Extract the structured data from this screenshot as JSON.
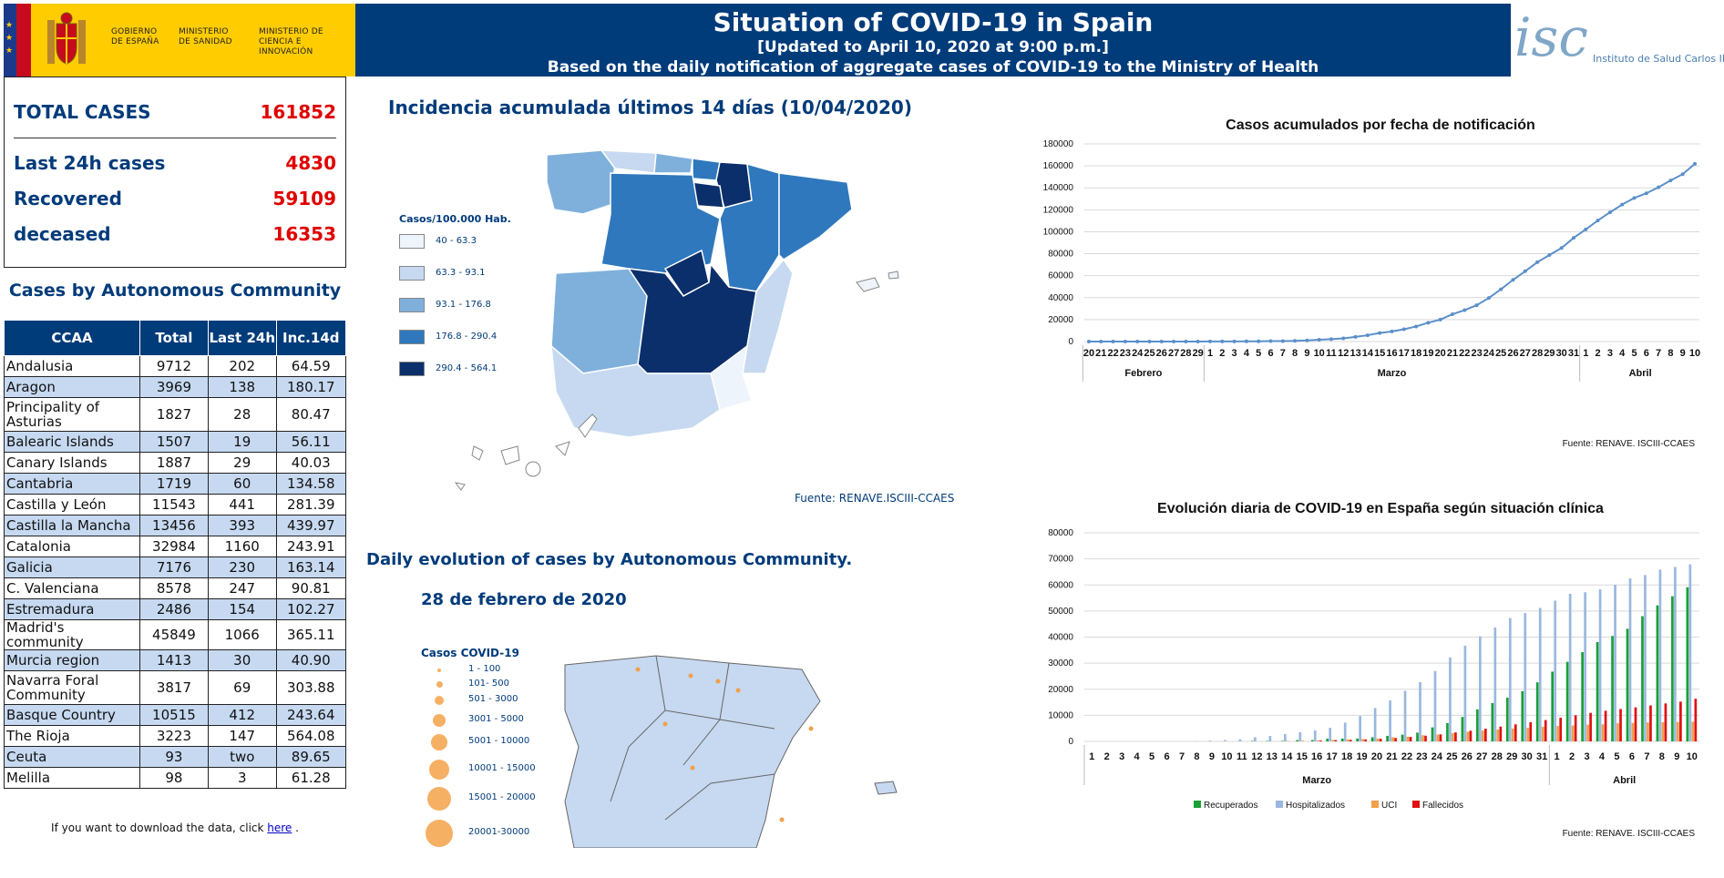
{
  "header": {
    "gov_labels": [
      "GOBIERNO DE ESPAÑA",
      "MINISTERIO DE SANIDAD",
      "MINISTERIO DE CIENCIA E INNOVACIÓN"
    ],
    "title": "Situation of COVID-19 in Spain",
    "updated": "[Updated to April 10, 2020 at 9:00 p.m.]",
    "subtitle": "Based on the daily notification of aggregate cases of COVID-19 to the Ministry of Health",
    "logo_text": "isc",
    "institute": "Instituto de Salud Carlos III"
  },
  "summary": {
    "total_label": "TOTAL CASES",
    "total_value": "161852",
    "last24_label": "Last 24h cases",
    "last24_value": "4830",
    "recovered_label": "Recovered",
    "recovered_value": "59109",
    "deceased_label": "deceased",
    "deceased_value": "16353"
  },
  "table": {
    "title": "Cases by Autonomous Community",
    "headers": [
      "CCAA",
      "Total",
      "Last 24h",
      "Inc.14d"
    ],
    "rows": [
      [
        "Andalusia",
        "9712",
        "202",
        "64.59"
      ],
      [
        "Aragon",
        "3969",
        "138",
        "180.17"
      ],
      [
        "Principality of Asturias",
        "1827",
        "28",
        "80.47"
      ],
      [
        "Balearic Islands",
        "1507",
        "19",
        "56.11"
      ],
      [
        "Canary Islands",
        "1887",
        "29",
        "40.03"
      ],
      [
        "Cantabria",
        "1719",
        "60",
        "134.58"
      ],
      [
        "Castilla y León",
        "11543",
        "441",
        "281.39"
      ],
      [
        "Castilla la Mancha",
        "13456",
        "393",
        "439.97"
      ],
      [
        "Catalonia",
        "32984",
        "1160",
        "243.91"
      ],
      [
        "Galicia",
        "7176",
        "230",
        "163.14"
      ],
      [
        "C. Valenciana",
        "8578",
        "247",
        "90.81"
      ],
      [
        "Estremadura",
        "2486",
        "154",
        "102.27"
      ],
      [
        "Madrid's community",
        "45849",
        "1066",
        "365.11"
      ],
      [
        "Murcia region",
        "1413",
        "30",
        "40.90"
      ],
      [
        "Navarra Foral Community",
        "3817",
        "69",
        "303.88"
      ],
      [
        "Basque Country",
        "10515",
        "412",
        "243.64"
      ],
      [
        "The Rioja",
        "3223",
        "147",
        "564.08"
      ],
      [
        "Ceuta",
        "93",
        "two",
        "89.65"
      ],
      [
        "Melilla",
        "98",
        "3",
        "61.28"
      ]
    ]
  },
  "download": {
    "prefix": "If you want to download the data, click ",
    "link": "here",
    "suffix": " ."
  },
  "map1": {
    "title": "Incidencia acumulada últimos 14 días (10/04/2020)",
    "legend_title": "Casos/100.000 Hab.",
    "legend": [
      {
        "label": "40 - 63.3",
        "color": "#eef4fb"
      },
      {
        "label": "63.3 - 93.1",
        "color": "#c6d9f0"
      },
      {
        "label": "93.1 - 176.8",
        "color": "#7fb0dc"
      },
      {
        "label": "176.8 - 290.4",
        "color": "#2f78bd"
      },
      {
        "label": "290.4 - 564.1",
        "color": "#0b2f6b"
      }
    ],
    "source": "Fuente: RENAVE.ISCIII-CCAES"
  },
  "map2": {
    "section_title": "Daily evolution of cases by Autonomous Community.",
    "date": "28 de febrero de 2020",
    "legend_title": "Casos COVID-19",
    "legend": [
      "1 - 100",
      "101- 500",
      "501 - 3000",
      "3001 - 5000",
      "5001 - 10000",
      "10001 - 15000",
      "15001 - 20000",
      "20001-30000"
    ]
  },
  "chart_data": [
    {
      "type": "line",
      "title": "Casos acumulados por fecha de notificación",
      "x": [
        "20",
        "21",
        "22",
        "23",
        "24",
        "25",
        "26",
        "27",
        "28",
        "29",
        "1",
        "2",
        "3",
        "4",
        "5",
        "6",
        "7",
        "8",
        "9",
        "10",
        "11",
        "12",
        "13",
        "14",
        "15",
        "16",
        "17",
        "18",
        "19",
        "20",
        "21",
        "22",
        "23",
        "24",
        "25",
        "26",
        "27",
        "28",
        "29",
        "30",
        "31",
        "1",
        "2",
        "3",
        "4",
        "5",
        "6",
        "7",
        "8",
        "9",
        "10"
      ],
      "month_labels": [
        "Febrero",
        "Marzo",
        "Abril"
      ],
      "values": [
        0,
        0,
        0,
        0,
        0,
        0,
        0,
        0,
        0,
        0,
        84,
        114,
        150,
        198,
        257,
        365,
        430,
        589,
        999,
        1622,
        2128,
        2950,
        4209,
        5753,
        7753,
        9191,
        11178,
        13716,
        17147,
        19980,
        24926,
        28572,
        33089,
        39673,
        47610,
        56188,
        64059,
        72248,
        78797,
        85195,
        94417,
        102136,
        110238,
        117710,
        124736,
        130759,
        135032,
        140510,
        146690,
        152446,
        161852
      ],
      "ylim": [
        0,
        180000
      ],
      "yticks": [
        "0",
        "20000",
        "40000",
        "60000",
        "80000",
        "100000",
        "120000",
        "140000",
        "160000",
        "180000"
      ],
      "color": "#5b8fc9",
      "source": "Fuente: RENAVE. ISCIII-CCAES",
      "grid": true
    },
    {
      "type": "bar",
      "title": "Evolución diaria de COVID-19 en España según situación clínica",
      "categories": [
        "1",
        "2",
        "3",
        "4",
        "5",
        "6",
        "7",
        "8",
        "9",
        "10",
        "11",
        "12",
        "13",
        "14",
        "15",
        "16",
        "17",
        "18",
        "19",
        "20",
        "21",
        "22",
        "23",
        "24",
        "25",
        "26",
        "27",
        "28",
        "29",
        "30",
        "31",
        "1",
        "2",
        "3",
        "4",
        "5",
        "6",
        "7",
        "8",
        "9",
        "10"
      ],
      "month_labels": [
        "Marzo",
        "Abril"
      ],
      "series": [
        {
          "name": "Recuperados",
          "color": "#19a037",
          "values": [
            0,
            0,
            0,
            0,
            0,
            0,
            0,
            0,
            0,
            0,
            0,
            183,
            189,
            193,
            517,
            530,
            1028,
            1081,
            1107,
            1588,
            2125,
            2575,
            3355,
            5367,
            7015,
            9357,
            12285,
            14709,
            16780,
            19259,
            22647,
            26743,
            30513,
            34219,
            38080,
            40437,
            43208,
            48021,
            52165,
            55668,
            59109
          ]
        },
        {
          "name": "Hospitalizados",
          "color": "#9ab8de",
          "values": [
            0,
            0,
            0,
            0,
            0,
            0,
            0,
            100,
            300,
            500,
            800,
            1600,
            2100,
            2800,
            3500,
            4200,
            5200,
            7200,
            9700,
            12800,
            15700,
            19400,
            22700,
            27000,
            32200,
            36700,
            40300,
            43700,
            47300,
            49200,
            51200,
            54000,
            56600,
            57200,
            58300,
            60100,
            62500,
            63800,
            65900,
            66900,
            67900
          ]
        },
        {
          "name": "UCI",
          "color": "#f0a04b",
          "values": [
            0,
            0,
            0,
            0,
            0,
            0,
            0,
            0,
            0,
            0,
            0,
            0,
            0,
            190,
            272,
            382,
            563,
            774,
            939,
            1141,
            1612,
            1785,
            2355,
            2636,
            3166,
            3679,
            4165,
            4575,
            4907,
            5231,
            5607,
            5872,
            6092,
            6416,
            6532,
            6931,
            7069,
            7255,
            7371,
            7456,
            7548
          ]
        },
        {
          "name": "Fallecidos",
          "color": "#e01010",
          "values": [
            0,
            0,
            0,
            0,
            0,
            0,
            0,
            0,
            0,
            0,
            0,
            0,
            0,
            0,
            0,
            342,
            491,
            598,
            767,
            1002,
            1326,
            1720,
            2182,
            2696,
            3434,
            4089,
            4858,
            5690,
            6528,
            7340,
            8189,
            9053,
            10003,
            10935,
            11744,
            12418,
            13055,
            13798,
            14555,
            15238,
            16353
          ]
        }
      ],
      "ylim": [
        0,
        80000
      ],
      "yticks": [
        "0",
        "10000",
        "20000",
        "30000",
        "40000",
        "50000",
        "60000",
        "70000",
        "80000"
      ],
      "source": "Fuente: RENAVE. ISCIII-CCAES",
      "legend_position": "bottom",
      "grid": true
    }
  ]
}
